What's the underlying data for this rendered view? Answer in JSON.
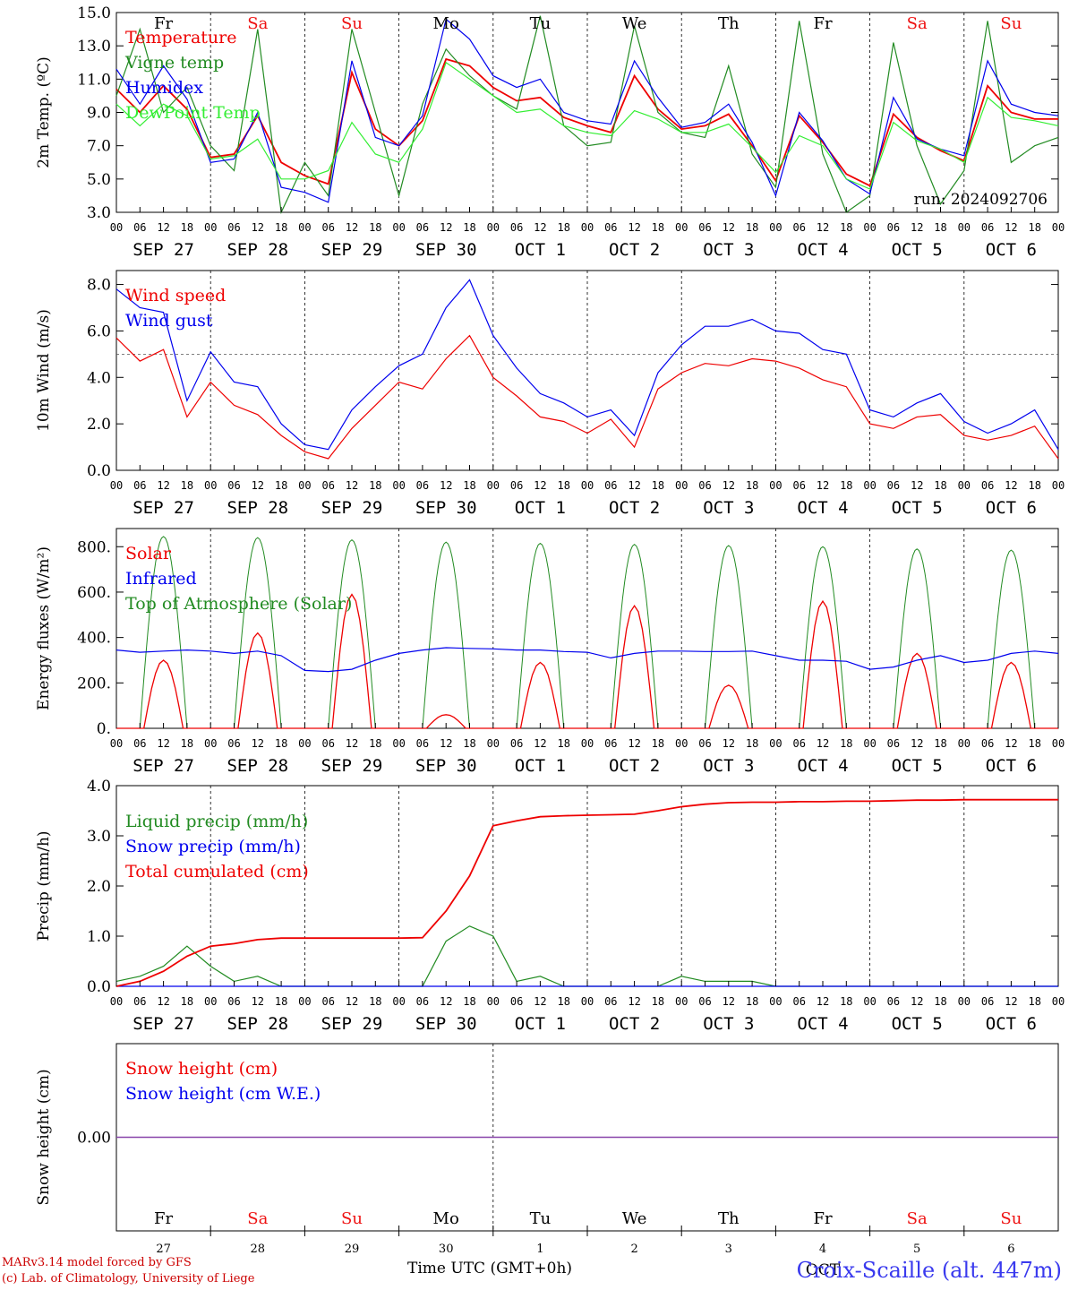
{
  "chart_data": {
    "run_label": "run: 2024092706",
    "days": [
      {
        "dow": "Fr",
        "dow_color": "#000000",
        "date": "SEP 27",
        "num": "27"
      },
      {
        "dow": "Sa",
        "dow_color": "#ee1111",
        "date": "SEP 28",
        "num": "28"
      },
      {
        "dow": "Su",
        "dow_color": "#ee1111",
        "date": "SEP 29",
        "num": "29"
      },
      {
        "dow": "Mo",
        "dow_color": "#000000",
        "date": "SEP 30",
        "num": "30"
      },
      {
        "dow": "Tu",
        "dow_color": "#000000",
        "date": "OCT  1",
        "num": "1"
      },
      {
        "dow": "We",
        "dow_color": "#000000",
        "date": "OCT  2",
        "num": "2"
      },
      {
        "dow": "Th",
        "dow_color": "#000000",
        "date": "OCT  3",
        "num": "3"
      },
      {
        "dow": "Fr",
        "dow_color": "#000000",
        "date": "OCT  4",
        "num": "4"
      },
      {
        "dow": "Sa",
        "dow_color": "#ee1111",
        "date": "OCT  5",
        "num": "5"
      },
      {
        "dow": "Su",
        "dow_color": "#ee1111",
        "date": "OCT  6",
        "num": "6"
      }
    ],
    "hour_ticks": [
      "00",
      "06",
      "12",
      "18"
    ],
    "panels": [
      {
        "id": "temperature",
        "type": "line",
        "ylabel": "2m Temp. (ºC)",
        "ylim": [
          3.0,
          15.0
        ],
        "yticks": [
          "3.0",
          "5.0",
          "7.0",
          "9.0",
          "11.0",
          "13.0",
          "15.0"
        ],
        "show_dow": true,
        "x_hours": [
          0,
          6,
          12,
          18,
          24,
          30,
          36,
          42,
          48,
          54,
          60,
          66,
          72,
          78,
          84,
          90,
          96,
          102,
          108,
          114,
          120,
          126,
          132,
          138,
          144,
          150,
          156,
          162,
          168,
          174,
          180,
          186,
          192,
          198,
          204,
          210,
          216,
          222,
          228,
          234,
          240
        ],
        "series": [
          {
            "name": "Temperature",
            "color": "#ee0000",
            "values": [
              10.4,
              9.0,
              10.6,
              9.2,
              6.3,
              6.5,
              8.8,
              6.0,
              5.2,
              4.7,
              11.4,
              8.0,
              7.0,
              8.5,
              12.2,
              11.8,
              10.5,
              9.7,
              9.9,
              8.7,
              8.2,
              7.8,
              11.2,
              9.2,
              8.0,
              8.2,
              8.9,
              7.0,
              4.9,
              8.8,
              7.2,
              5.3,
              4.6,
              8.9,
              7.5,
              6.7,
              6.1,
              10.6,
              9.0,
              8.6,
              8.6
            ]
          },
          {
            "name": "Vigne temp",
            "color": "#228B22",
            "values": [
              10.0,
              14.0,
              9.0,
              10.5,
              7.0,
              5.5,
              14.0,
              3.0,
              6.0,
              4.0,
              14.0,
              9.0,
              4.0,
              9.5,
              12.8,
              11.2,
              10.0,
              9.2,
              14.8,
              8.2,
              7.0,
              7.2,
              14.2,
              9.0,
              7.8,
              7.5,
              11.8,
              6.5,
              4.5,
              14.5,
              6.5,
              3.0,
              4.0,
              13.2,
              7.0,
              3.5,
              5.5,
              14.5,
              6.0,
              7.0,
              7.5
            ]
          },
          {
            "name": "Humidex",
            "color": "#0000ee",
            "values": [
              11.6,
              9.5,
              11.8,
              9.8,
              6.0,
              6.2,
              9.0,
              4.5,
              4.2,
              3.6,
              12.1,
              7.5,
              7.0,
              8.8,
              14.6,
              13.4,
              11.2,
              10.5,
              11.0,
              9.0,
              8.5,
              8.3,
              12.1,
              9.9,
              8.1,
              8.4,
              9.5,
              7.2,
              4.0,
              9.0,
              7.3,
              5.0,
              4.1,
              9.9,
              7.4,
              6.8,
              6.4,
              12.1,
              9.5,
              9.0,
              8.8
            ]
          },
          {
            "name": "DewPoint Temp",
            "color": "#33ee33",
            "values": [
              9.5,
              8.2,
              9.5,
              8.8,
              6.2,
              6.4,
              7.4,
              5.0,
              5.0,
              5.5,
              8.4,
              6.5,
              6.0,
              8.0,
              12.0,
              11.0,
              10.0,
              9.0,
              9.2,
              8.2,
              7.8,
              7.6,
              9.1,
              8.6,
              7.8,
              7.8,
              8.3,
              6.9,
              5.4,
              7.6,
              7.0,
              5.0,
              4.4,
              8.4,
              7.3,
              6.8,
              6.0,
              9.9,
              8.7,
              8.5,
              8.2
            ]
          }
        ]
      },
      {
        "id": "wind",
        "type": "line",
        "ylabel": "10m Wind (m/s)",
        "ylim": [
          0.0,
          8.6
        ],
        "yticks": [
          "0.0",
          "2.0",
          "4.0",
          "6.0",
          "8.0"
        ],
        "ref_line": 5.0,
        "show_dow": false,
        "x_hours": [
          0,
          6,
          12,
          18,
          24,
          30,
          36,
          42,
          48,
          54,
          60,
          66,
          72,
          78,
          84,
          90,
          96,
          102,
          108,
          114,
          120,
          126,
          132,
          138,
          144,
          150,
          156,
          162,
          168,
          174,
          180,
          186,
          192,
          198,
          204,
          210,
          216,
          222,
          228,
          234,
          240
        ],
        "series": [
          {
            "name": "Wind speed",
            "color": "#ee0000",
            "values": [
              5.7,
              4.7,
              5.2,
              2.3,
              3.8,
              2.8,
              2.4,
              1.5,
              0.8,
              0.5,
              1.8,
              2.8,
              3.8,
              3.5,
              4.8,
              5.8,
              4.0,
              3.2,
              2.3,
              2.1,
              1.6,
              2.2,
              1.0,
              3.5,
              4.2,
              4.6,
              4.5,
              4.8,
              4.7,
              4.4,
              3.9,
              3.6,
              2.0,
              1.8,
              2.3,
              2.4,
              1.5,
              1.3,
              1.5,
              1.9,
              0.5
            ]
          },
          {
            "name": "Wind gust",
            "color": "#0000ee",
            "values": [
              7.8,
              7.0,
              6.8,
              3.0,
              5.1,
              3.8,
              3.6,
              2.0,
              1.1,
              0.9,
              2.6,
              3.6,
              4.5,
              5.0,
              7.0,
              8.2,
              5.8,
              4.4,
              3.3,
              2.9,
              2.3,
              2.6,
              1.5,
              4.2,
              5.4,
              6.2,
              6.2,
              6.5,
              6.0,
              5.9,
              5.2,
              5.0,
              2.6,
              2.3,
              2.9,
              3.3,
              2.1,
              1.6,
              2.0,
              2.6,
              0.9
            ]
          }
        ]
      },
      {
        "id": "energy",
        "type": "line",
        "ylabel": "Energy fluxes (W/m²)",
        "ylim": [
          0,
          880
        ],
        "yticks": [
          "0.",
          "200.",
          "400.",
          "600.",
          "800."
        ],
        "show_dow": false,
        "day_curves": {
          "solar_peaks": [
            300,
            420,
            590,
            60,
            290,
            540,
            190,
            560,
            330,
            290
          ],
          "toa_peaks": [
            845,
            840,
            830,
            820,
            815,
            810,
            805,
            800,
            790,
            785
          ]
        },
        "x_hours": [
          0,
          6,
          12,
          18,
          24,
          30,
          36,
          42,
          48,
          54,
          60,
          66,
          72,
          78,
          84,
          90,
          96,
          102,
          108,
          114,
          120,
          126,
          132,
          138,
          144,
          150,
          156,
          162,
          168,
          174,
          180,
          186,
          192,
          198,
          204,
          210,
          216,
          222,
          228,
          234,
          240
        ],
        "series": [
          {
            "name": "Solar",
            "color": "#ee0000",
            "values": []
          },
          {
            "name": "Infrared",
            "color": "#0000ee",
            "values": [
              345,
              335,
              340,
              345,
              340,
              330,
              340,
              320,
              255,
              250,
              260,
              300,
              330,
              345,
              355,
              352,
              350,
              345,
              345,
              338,
              335,
              310,
              330,
              340,
              340,
              338,
              338,
              340,
              320,
              300,
              300,
              295,
              260,
              270,
              300,
              320,
              290,
              300,
              330,
              340,
              330
            ]
          },
          {
            "name": "Top of Atmosphere (Solar)",
            "color": "#228B22",
            "values": []
          }
        ]
      },
      {
        "id": "precip",
        "type": "line",
        "ylabel": "Precip (mm/h)",
        "ylim": [
          0.0,
          4.0
        ],
        "yticks": [
          "0.0",
          "1.0",
          "2.0",
          "3.0",
          "4.0"
        ],
        "show_dow": false,
        "x_hours": [
          0,
          6,
          12,
          18,
          24,
          30,
          36,
          42,
          48,
          54,
          60,
          66,
          72,
          78,
          84,
          90,
          96,
          102,
          108,
          114,
          120,
          126,
          132,
          138,
          144,
          150,
          156,
          162,
          168,
          174,
          180,
          186,
          192,
          198,
          204,
          210,
          216,
          222,
          228,
          234,
          240
        ],
        "series": [
          {
            "name": "Liquid precip (mm/h)",
            "color": "#228B22",
            "values": [
              0.1,
              0.2,
              0.4,
              0.8,
              0.4,
              0.1,
              0.2,
              0.0,
              0.0,
              0.0,
              0.0,
              0.0,
              0.0,
              0.0,
              0.9,
              1.2,
              1.0,
              0.1,
              0.2,
              0.0,
              0.0,
              0.0,
              0.0,
              0.0,
              0.2,
              0.1,
              0.1,
              0.1,
              0.0,
              0.0,
              0.0,
              0.0,
              0.0,
              0.0,
              0.0,
              0.0,
              0.0,
              0.0,
              0.0,
              0.0,
              0.0
            ]
          },
          {
            "name": "Snow precip (mm/h)",
            "color": "#0000ee",
            "values": [
              0,
              0,
              0,
              0,
              0,
              0,
              0,
              0,
              0,
              0,
              0,
              0,
              0,
              0,
              0,
              0,
              0,
              0,
              0,
              0,
              0,
              0,
              0,
              0,
              0,
              0,
              0,
              0,
              0,
              0,
              0,
              0,
              0,
              0,
              0,
              0,
              0,
              0,
              0,
              0,
              0
            ]
          },
          {
            "name": "Total cumulated (cm)",
            "color": "#ee0000",
            "values": [
              0.0,
              0.1,
              0.3,
              0.6,
              0.8,
              0.85,
              0.93,
              0.96,
              0.96,
              0.96,
              0.96,
              0.96,
              0.96,
              0.97,
              1.5,
              2.2,
              3.2,
              3.3,
              3.38,
              3.4,
              3.41,
              3.42,
              3.43,
              3.5,
              3.58,
              3.63,
              3.66,
              3.67,
              3.67,
              3.68,
              3.68,
              3.69,
              3.69,
              3.7,
              3.71,
              3.71,
              3.72,
              3.72,
              3.72,
              3.72,
              3.72
            ]
          }
        ]
      },
      {
        "id": "snow",
        "type": "line",
        "ylabel": "Snow height (cm)",
        "ylim": [
          -1.0,
          1.0
        ],
        "yticks": [
          "0.00"
        ],
        "show_dow": false,
        "series": [
          {
            "name": "Snow height (cm)",
            "color": "#ee0000",
            "values": [
              0,
              0
            ]
          },
          {
            "name": "Snow height (cm W.E.)",
            "color": "#0000ee",
            "values": [
              0,
              0
            ]
          }
        ]
      }
    ],
    "footer": {
      "model": "MARv3.14 model forced by GFS",
      "lab": "(c) Lab. of Climatology, University of Liege",
      "axis_title": "Time UTC (GMT+0h)",
      "month": "OCT",
      "station": "Croix-Scaille (alt. 447m)"
    }
  }
}
